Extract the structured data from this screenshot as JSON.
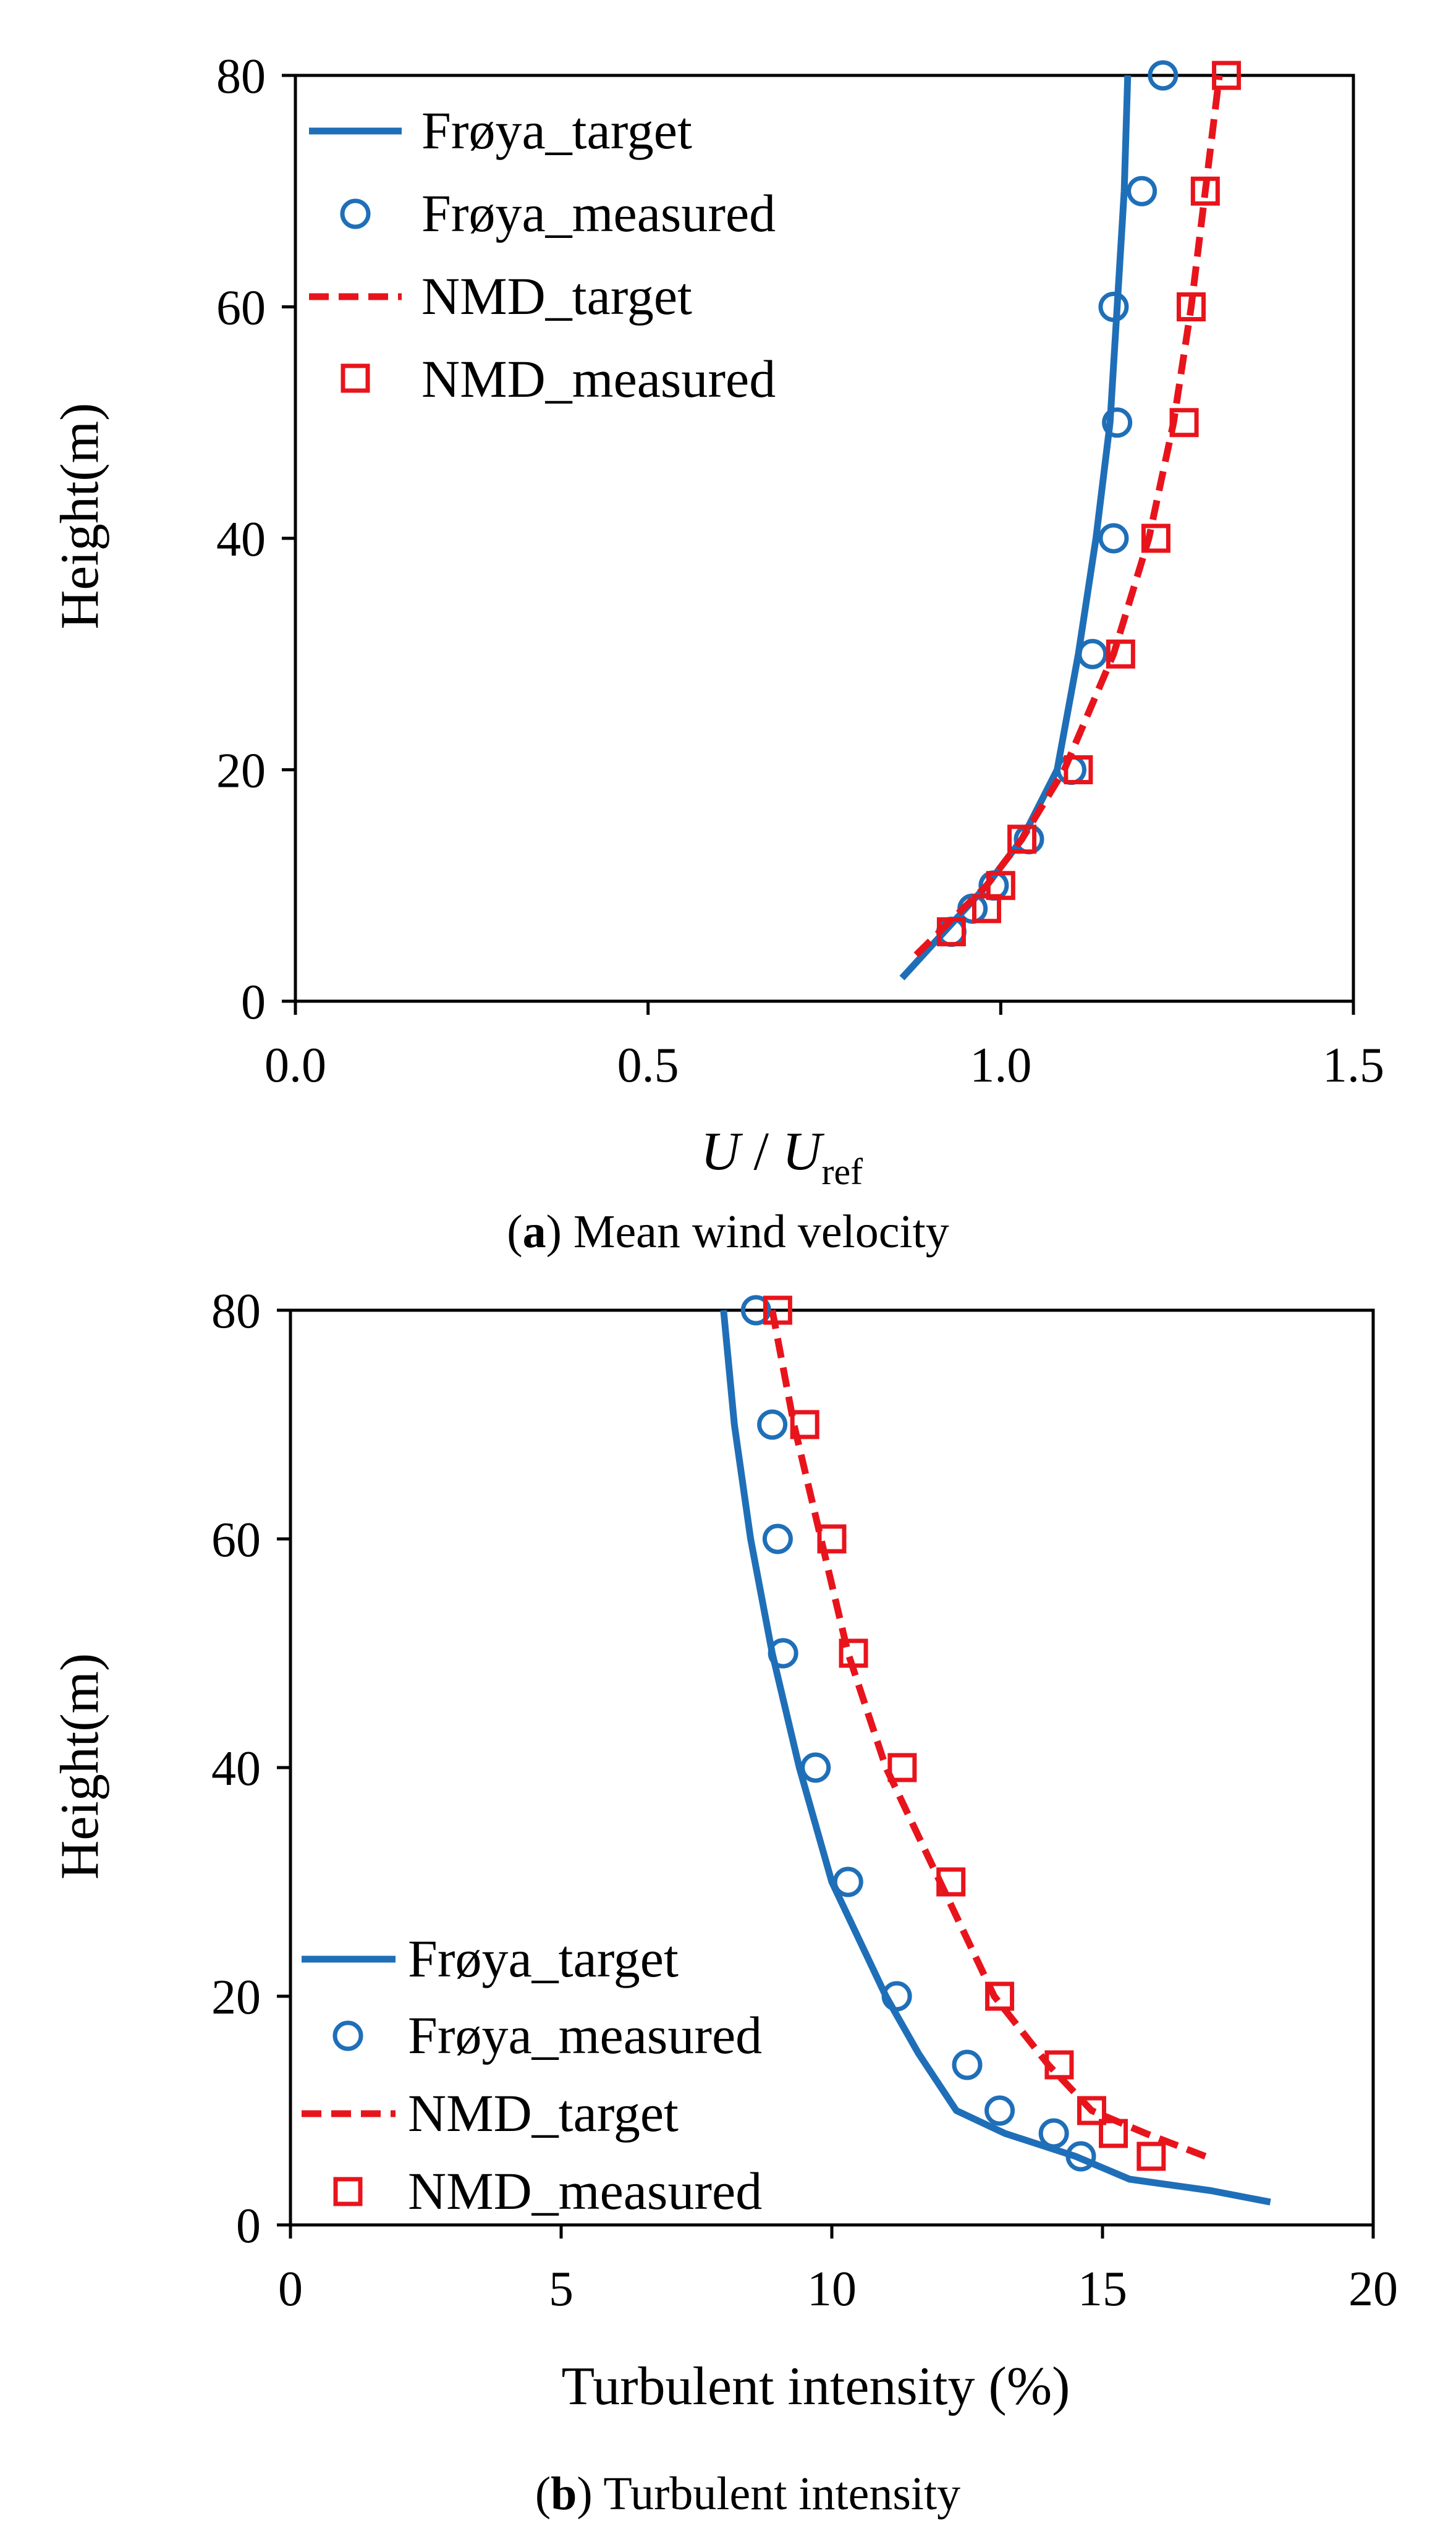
{
  "chart_data": [
    {
      "type": "line",
      "panel_id": "a",
      "caption_letter": "a",
      "caption_text": " Mean wind velocity",
      "xlabel_main": "U",
      "xlabel_sep": " / ",
      "xlabel_sub": "ref",
      "ylabel": "Height(m)",
      "xlim": [
        0,
        1.5
      ],
      "ylim": [
        0,
        80
      ],
      "x_ticks": [
        0,
        0.5,
        1,
        1.5
      ],
      "x_tick_labels": [
        "0.0",
        "0.5",
        "1.0",
        "1.5"
      ],
      "y_ticks": [
        0,
        20,
        40,
        60,
        80
      ],
      "y_tick_labels": [
        "0",
        "20",
        "40",
        "60",
        "80"
      ],
      "legend_position": "top-left",
      "series": [
        {
          "name": "Frøya_target",
          "kind": "line",
          "style": "solid",
          "color": "#1f6fb8",
          "x": [
            0.86,
            0.92,
            0.98,
            1.03,
            1.08,
            1.11,
            1.135,
            1.155,
            1.165,
            1.175,
            1.18
          ],
          "y": [
            2,
            6,
            10,
            14,
            20,
            30,
            40,
            50,
            60,
            70,
            80
          ]
        },
        {
          "name": "Frøya_measured",
          "kind": "marker",
          "marker": "circle",
          "color": "#1f6fb8",
          "x": [
            0.93,
            0.96,
            0.99,
            1.04,
            1.1,
            1.13,
            1.16,
            1.165,
            1.16,
            1.2,
            1.23
          ],
          "y": [
            6,
            8,
            10,
            14,
            20,
            30,
            40,
            50,
            60,
            70,
            80
          ]
        },
        {
          "name": "NMD_target",
          "kind": "line",
          "style": "dashed",
          "color": "#e8141c",
          "x": [
            0.88,
            0.93,
            0.98,
            1.03,
            1.09,
            1.16,
            1.21,
            1.245,
            1.27,
            1.29,
            1.31
          ],
          "y": [
            4,
            7,
            10,
            14,
            20,
            30,
            40,
            50,
            60,
            70,
            80
          ]
        },
        {
          "name": "NMD_measured",
          "kind": "marker",
          "marker": "square",
          "color": "#e8141c",
          "x": [
            0.93,
            0.98,
            1.0,
            1.03,
            1.11,
            1.17,
            1.22,
            1.26,
            1.27,
            1.29,
            1.32
          ],
          "y": [
            6,
            8,
            10,
            14,
            20,
            30,
            40,
            50,
            60,
            70,
            80
          ]
        }
      ]
    },
    {
      "type": "line",
      "panel_id": "b",
      "caption_letter": "b",
      "caption_text": " Turbulent intensity",
      "xlabel": "Turbulent intensity (%)",
      "ylabel": "Height(m)",
      "xlim": [
        0,
        20
      ],
      "ylim": [
        0,
        80
      ],
      "x_ticks": [
        0,
        5,
        10,
        15,
        20
      ],
      "x_tick_labels": [
        "0",
        "5",
        "10",
        "15",
        "20"
      ],
      "y_ticks": [
        0,
        20,
        40,
        60,
        80
      ],
      "y_tick_labels": [
        "0",
        "20",
        "40",
        "60",
        "80"
      ],
      "legend_position": "bottom-left",
      "series": [
        {
          "name": "Frøya_target",
          "kind": "line",
          "style": "solid",
          "color": "#1f6fb8",
          "x": [
            18.1,
            17,
            15.5,
            14.5,
            13.2,
            12.3,
            11.6,
            11.0,
            10.0,
            9.4,
            8.9,
            8.5,
            8.2,
            8.0
          ],
          "y": [
            2,
            3,
            4,
            6,
            8,
            10,
            15,
            20,
            30,
            40,
            50,
            60,
            70,
            80
          ]
        },
        {
          "name": "Frøya_measured",
          "kind": "marker",
          "marker": "circle",
          "color": "#1f6fb8",
          "x": [
            14.6,
            14.1,
            13.1,
            12.5,
            11.2,
            10.3,
            9.7,
            9.1,
            9.0,
            8.9,
            8.6
          ],
          "y": [
            6,
            8,
            10,
            14,
            20,
            30,
            40,
            50,
            60,
            70,
            80
          ]
        },
        {
          "name": "NMD_target",
          "kind": "line",
          "style": "dashed",
          "color": "#e8141c",
          "x": [
            16.9,
            15.8,
            14.8,
            14.0,
            13.0,
            12.0,
            11.0,
            10.3,
            9.8,
            9.3,
            8.9
          ],
          "y": [
            6,
            8,
            10,
            14,
            20,
            30,
            40,
            50,
            60,
            70,
            80
          ]
        },
        {
          "name": "NMD_measured",
          "kind": "marker",
          "marker": "square",
          "color": "#e8141c",
          "x": [
            15.9,
            15.2,
            14.8,
            14.2,
            13.1,
            12.2,
            11.3,
            10.4,
            10.0,
            9.5,
            9.0
          ],
          "y": [
            6,
            8,
            10,
            14,
            20,
            30,
            40,
            50,
            60,
            70,
            80
          ]
        }
      ]
    }
  ]
}
